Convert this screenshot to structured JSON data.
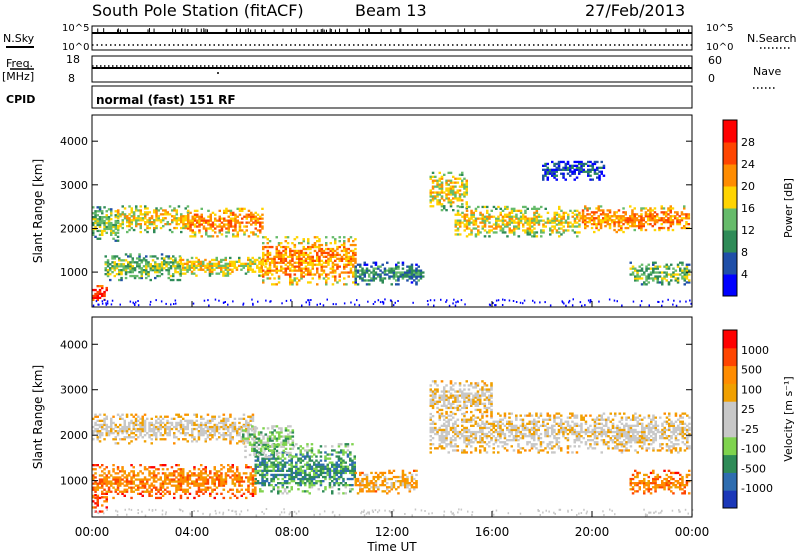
{
  "header": {
    "station": "South Pole Station (fitACF)",
    "beam": "Beam 13",
    "date": "27/Feb/2013"
  },
  "status_panels": {
    "nsky_label": "N.Sky",
    "nsky_ticks": [
      "10^5",
      "10^0"
    ],
    "nsearch_label": "N.Search",
    "nsearch_ticks": [
      "10^5",
      "10^0"
    ],
    "freq_label": "Freq.",
    "freq_unit": "[MHz]",
    "freq_ticks": [
      "18",
      "8"
    ],
    "nave_label": "Nave",
    "nave_ticks": [
      "60",
      "0"
    ],
    "cpid_label": "CPID",
    "cpid_value": "normal (fast) 151 RF"
  },
  "colors": {
    "power_scale": [
      "#0000ff",
      "#1f4fa8",
      "#2e8b57",
      "#66bb6a",
      "#ffd400",
      "#ff8c00",
      "#ff4500",
      "#ff0000"
    ],
    "velocity_scale": [
      "#ff0000",
      "#ff4500",
      "#ff8c00",
      "#f0a000",
      "#c8c8c8",
      "#c8c8c8",
      "#7fd34e",
      "#2e8b57",
      "#2e6db0",
      "#1a37b8"
    ]
  },
  "chart_data": [
    {
      "type": "heatmap",
      "name": "power",
      "ylabel": "Slant Range [km]",
      "yticks": [
        "1000",
        "2000",
        "3000",
        "4000"
      ],
      "ylim": [
        200,
        4600
      ],
      "xlim": [
        0,
        24
      ],
      "colorbar_label": "Power [dB]",
      "colorbar_ticks": [
        "4",
        "8",
        "12",
        "16",
        "20",
        "24",
        "28"
      ],
      "bands": [
        {
          "t0": 0.0,
          "t1": 1.0,
          "r0": 1700,
          "r1": 2500,
          "level": 3
        },
        {
          "t0": 1.0,
          "t1": 3.8,
          "r0": 1900,
          "r1": 2500,
          "level": 4
        },
        {
          "t0": 3.8,
          "t1": 6.8,
          "r0": 1800,
          "r1": 2450,
          "level": 5
        },
        {
          "t0": 0.5,
          "t1": 3.5,
          "r0": 800,
          "r1": 1400,
          "level": 3
        },
        {
          "t0": 3.5,
          "t1": 7.0,
          "r0": 900,
          "r1": 1350,
          "level": 4
        },
        {
          "t0": 6.8,
          "t1": 10.5,
          "r0": 700,
          "r1": 1800,
          "level": 5
        },
        {
          "t0": 10.5,
          "t1": 13.2,
          "r0": 700,
          "r1": 1200,
          "level": 2
        },
        {
          "t0": 13.5,
          "t1": 15.0,
          "r0": 2400,
          "r1": 3300,
          "level": 4
        },
        {
          "t0": 14.5,
          "t1": 19.5,
          "r0": 1800,
          "r1": 2500,
          "level": 4
        },
        {
          "t0": 19.5,
          "t1": 23.9,
          "r0": 1900,
          "r1": 2500,
          "level": 5
        },
        {
          "t0": 18.0,
          "t1": 20.5,
          "r0": 3100,
          "r1": 3550,
          "level": 1
        },
        {
          "t0": 21.5,
          "t1": 23.9,
          "r0": 700,
          "r1": 1200,
          "level": 3
        },
        {
          "t0": 0.0,
          "t1": 0.6,
          "r0": 300,
          "r1": 700,
          "level": 7
        }
      ]
    },
    {
      "type": "heatmap",
      "name": "velocity",
      "ylabel": "Slant Range [km]",
      "yticks": [
        "1000",
        "2000",
        "3000",
        "4000"
      ],
      "ylim": [
        200,
        4600
      ],
      "xlim": [
        0,
        24
      ],
      "colorbar_label": "Velocity [m s⁻¹]",
      "colorbar_ticks": [
        "1000",
        "500",
        "100",
        "25",
        "-25",
        "-100",
        "-500",
        "-1000"
      ],
      "bands": [
        {
          "t0": 0.0,
          "t1": 6.5,
          "r0": 1800,
          "r1": 2450,
          "level": 4
        },
        {
          "t0": 0.0,
          "t1": 6.5,
          "r0": 600,
          "r1": 1350,
          "level": 2
        },
        {
          "t0": 6.5,
          "t1": 10.5,
          "r0": 700,
          "r1": 1800,
          "level": 7
        },
        {
          "t0": 6.0,
          "t1": 8.0,
          "r0": 1500,
          "r1": 2200,
          "level": 6
        },
        {
          "t0": 10.5,
          "t1": 13.0,
          "r0": 700,
          "r1": 1200,
          "level": 3
        },
        {
          "t0": 13.5,
          "t1": 23.9,
          "r0": 1600,
          "r1": 2500,
          "level": 4
        },
        {
          "t0": 13.5,
          "t1": 16.0,
          "r0": 2400,
          "r1": 3200,
          "level": 4
        },
        {
          "t0": 21.5,
          "t1": 23.9,
          "r0": 700,
          "r1": 1200,
          "level": 2
        },
        {
          "t0": 0.0,
          "t1": 0.6,
          "r0": 300,
          "r1": 700,
          "level": 1
        }
      ]
    }
  ],
  "xaxis": {
    "label": "Time UT",
    "ticks": [
      "00:00",
      "04:00",
      "08:00",
      "12:00",
      "16:00",
      "20:00",
      "00:00"
    ]
  }
}
